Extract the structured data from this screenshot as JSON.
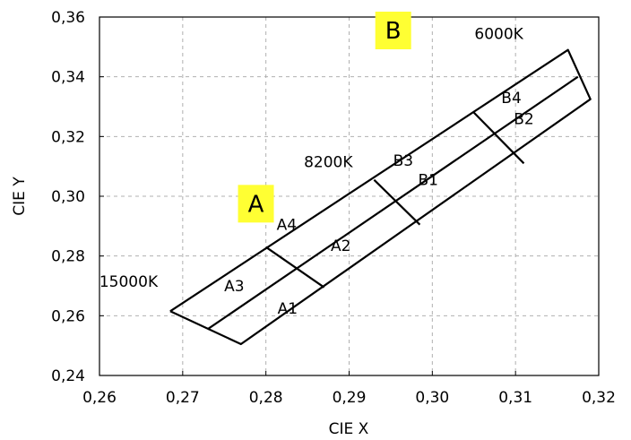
{
  "chart_data": {
    "type": "scatter",
    "xlabel": "CIE X",
    "ylabel": "CIE Y",
    "xlim": [
      0.26,
      0.32
    ],
    "ylim": [
      0.24,
      0.36
    ],
    "x_ticks": [
      "0,26",
      "0,27",
      "0,28",
      "0,29",
      "0,30",
      "0,31",
      "0,32"
    ],
    "x_tick_values": [
      0.26,
      0.27,
      0.28,
      0.29,
      0.3,
      0.31,
      0.32
    ],
    "y_ticks": [
      "0,24",
      "0,26",
      "0,28",
      "0,30",
      "0,32",
      "0,34",
      "0,36"
    ],
    "y_tick_values": [
      0.24,
      0.26,
      0.28,
      0.3,
      0.32,
      0.34,
      0.36
    ],
    "grid": true,
    "outline": [
      [
        0.2685,
        0.2615
      ],
      [
        0.3163,
        0.349
      ],
      [
        0.319,
        0.3325
      ],
      [
        0.277,
        0.2505
      ],
      [
        0.2685,
        0.2615
      ]
    ],
    "center_line": [
      [
        0.273,
        0.2555
      ],
      [
        0.3175,
        0.34
      ]
    ],
    "dividers": [
      [
        [
          0.28,
          0.283
        ],
        [
          0.287,
          0.2695
        ]
      ],
      [
        [
          0.293,
          0.3055
        ],
        [
          0.2985,
          0.2905
        ]
      ],
      [
        [
          0.305,
          0.328
        ],
        [
          0.311,
          0.311
        ]
      ]
    ],
    "regions": [
      {
        "label": "A1",
        "x": 0.2826,
        "y": 0.2625
      },
      {
        "label": "A2",
        "x": 0.289,
        "y": 0.2835
      },
      {
        "label": "A3",
        "x": 0.2762,
        "y": 0.27
      },
      {
        "label": "A4",
        "x": 0.2825,
        "y": 0.2905
      },
      {
        "label": "B1",
        "x": 0.2995,
        "y": 0.3055
      },
      {
        "label": "B2",
        "x": 0.311,
        "y": 0.326
      },
      {
        "label": "B3",
        "x": 0.2965,
        "y": 0.312
      },
      {
        "label": "B4",
        "x": 0.3095,
        "y": 0.333
      }
    ],
    "temperature_labels": [
      {
        "label": "15000K",
        "x": 0.2635,
        "y": 0.2715
      },
      {
        "label": "8200K",
        "x": 0.2875,
        "y": 0.3115
      },
      {
        "label": "6000K",
        "x": 0.308,
        "y": 0.3545
      }
    ],
    "group_labels": [
      {
        "label": "A",
        "x": 0.2788,
        "y": 0.2975,
        "highlight": "#ffff33"
      },
      {
        "label": "B",
        "x": 0.2953,
        "y": 0.3555,
        "highlight": "#ffff33"
      }
    ]
  }
}
